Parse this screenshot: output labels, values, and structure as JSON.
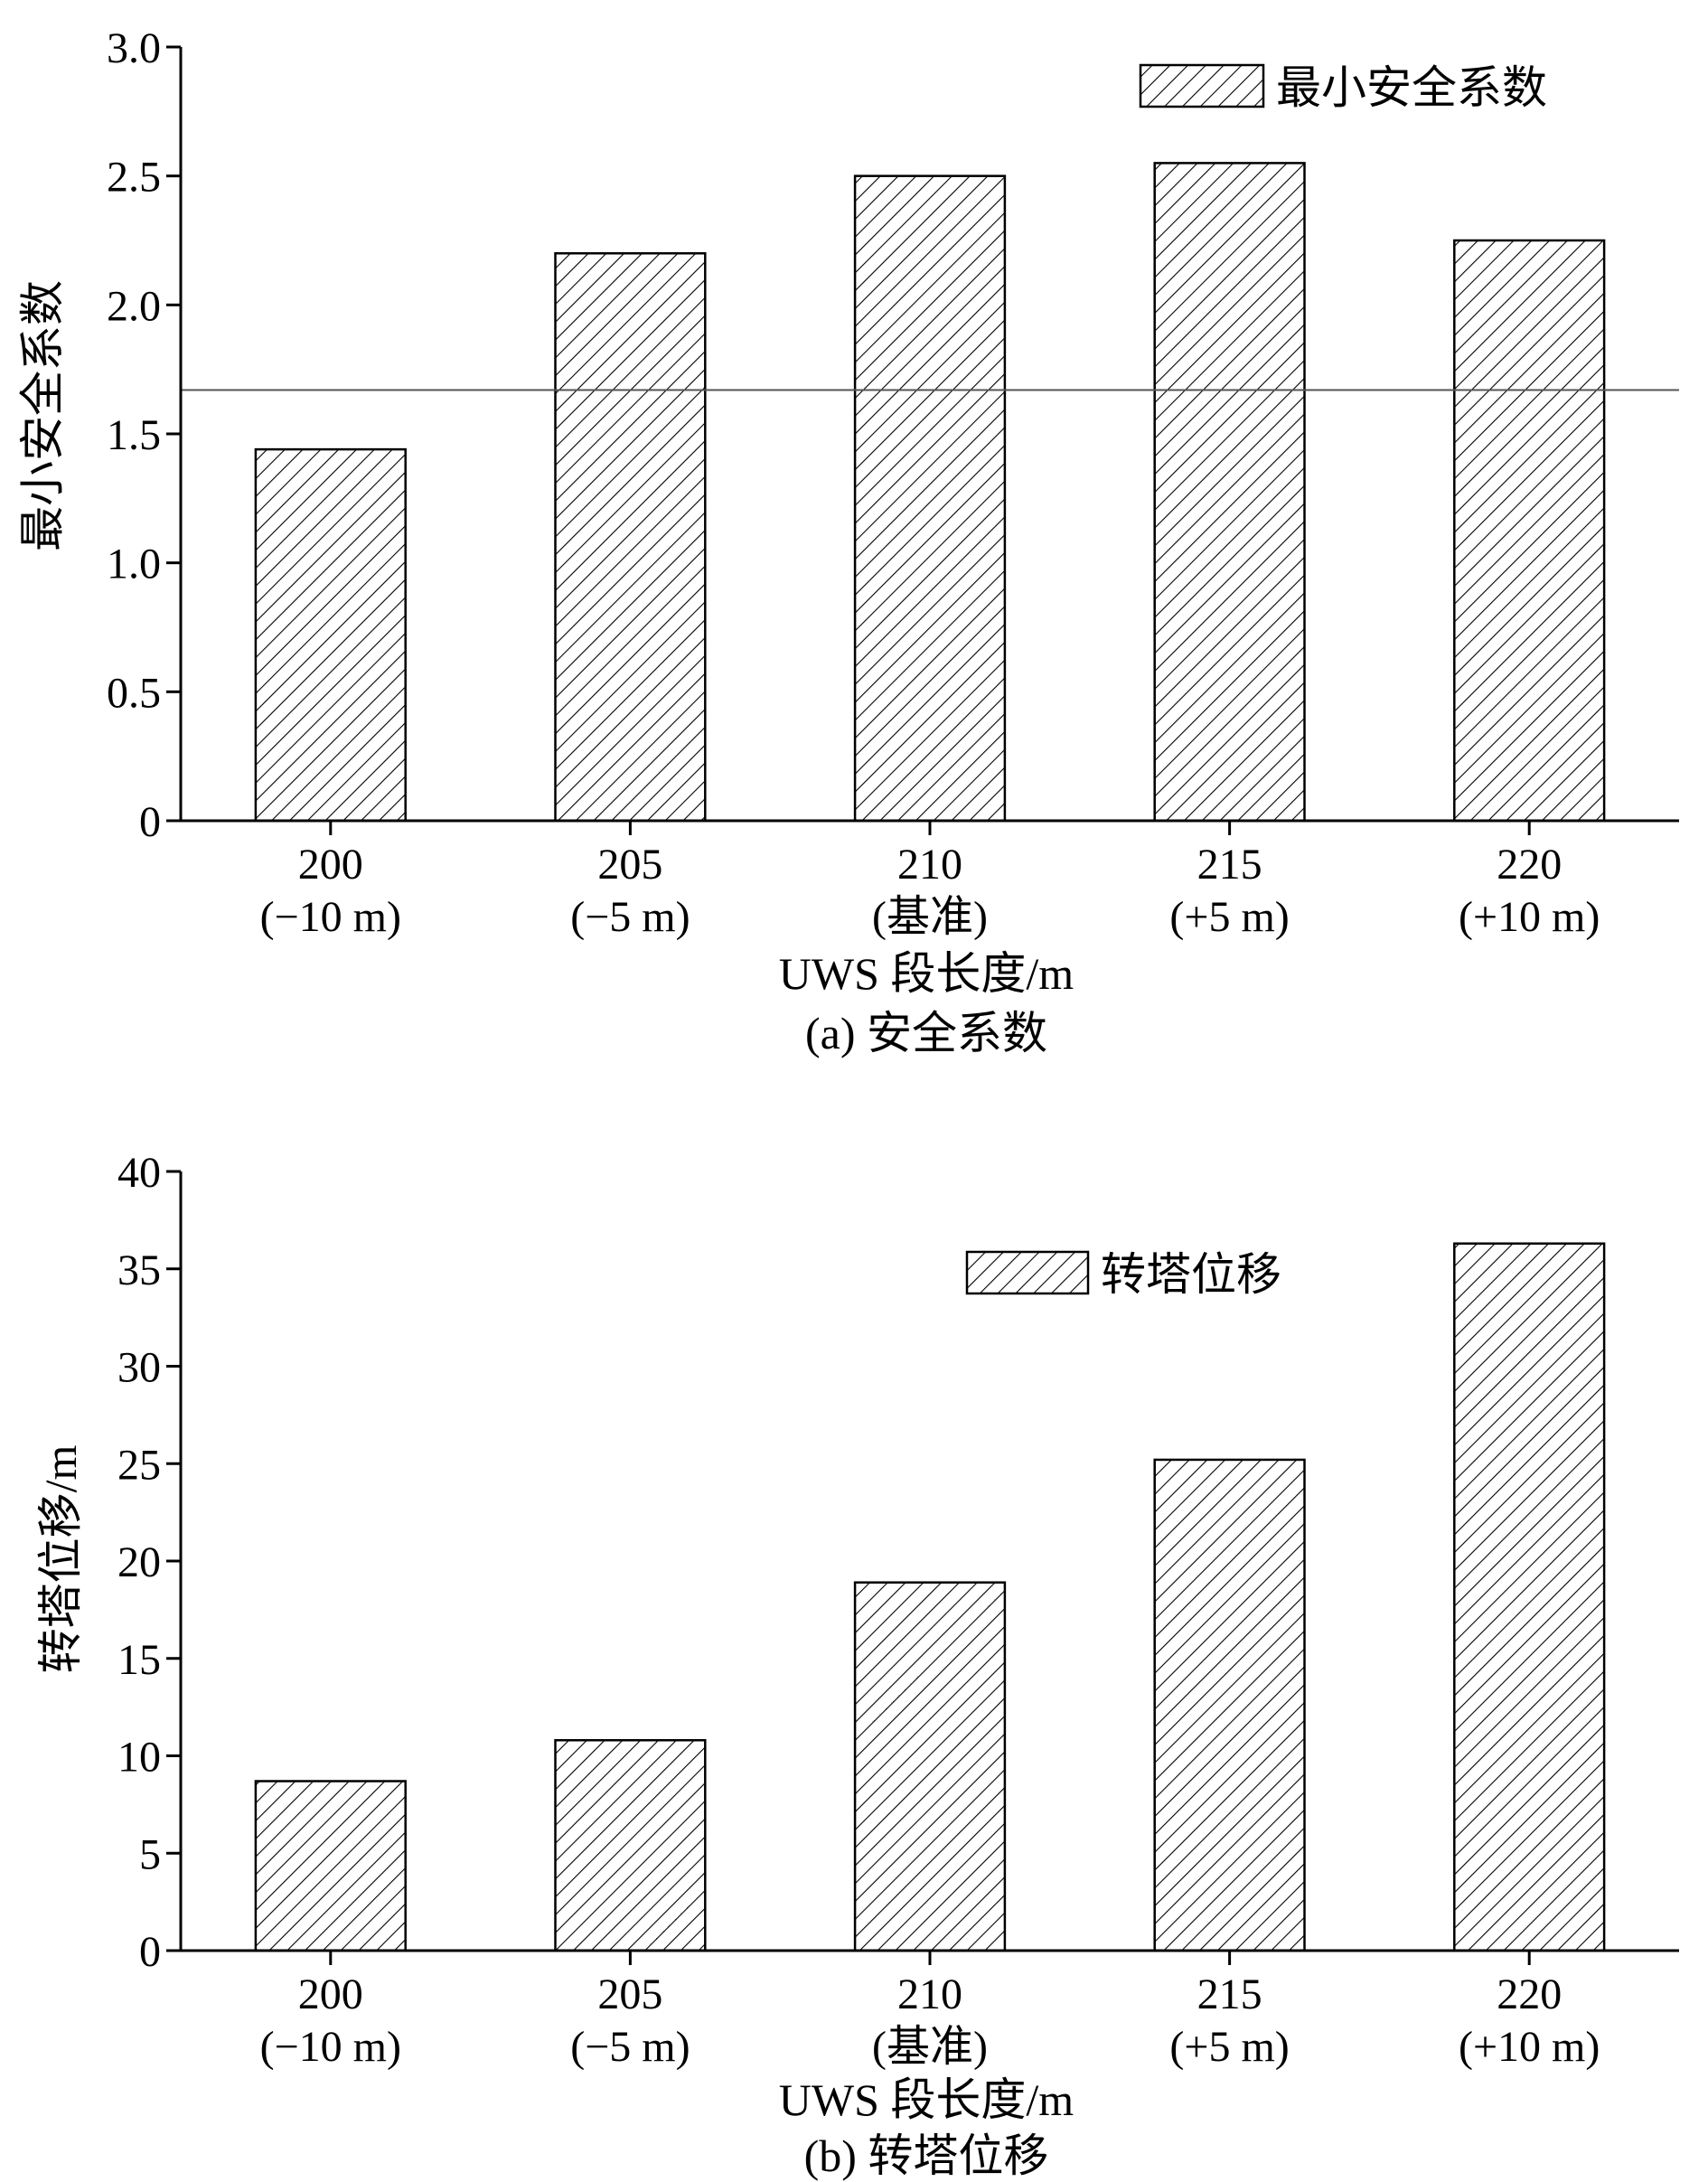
{
  "chart_data": [
    {
      "type": "bar",
      "categories": [
        "200",
        "205",
        "210",
        "215",
        "220"
      ],
      "category_sublabels": [
        "(−10 m)",
        "(−5 m)",
        "(基准)",
        "(+5 m)",
        "(+10 m)"
      ],
      "series": [
        {
          "name": "最小安全系数",
          "values": [
            1.44,
            2.2,
            2.5,
            2.55,
            2.25
          ]
        }
      ],
      "reference_line": 1.67,
      "ylim": [
        0,
        3.0
      ],
      "yticks": [
        "0",
        "0.5",
        "1.0",
        "1.5",
        "2.0",
        "2.5",
        "3.0"
      ],
      "xlabel": "UWS 段长度/m",
      "ylabel": "最小安全系数",
      "caption": "(a) 安全系数",
      "legend_position": "top-right",
      "fill": "diagonal-hatch"
    },
    {
      "type": "bar",
      "categories": [
        "200",
        "205",
        "210",
        "215",
        "220"
      ],
      "category_sublabels": [
        "(−10 m)",
        "(−5 m)",
        "(基准)",
        "(+5 m)",
        "(+10 m)"
      ],
      "series": [
        {
          "name": "转塔位移",
          "values": [
            8.7,
            10.8,
            18.9,
            25.2,
            36.3
          ]
        }
      ],
      "ylim": [
        0,
        40
      ],
      "yticks": [
        "0",
        "5",
        "10",
        "15",
        "20",
        "25",
        "30",
        "35",
        "40"
      ],
      "xlabel": "UWS 段长度/m",
      "ylabel": "转塔位移/m",
      "caption": "(b) 转塔位移",
      "legend_position": "top-right",
      "fill": "diagonal-hatch"
    }
  ]
}
